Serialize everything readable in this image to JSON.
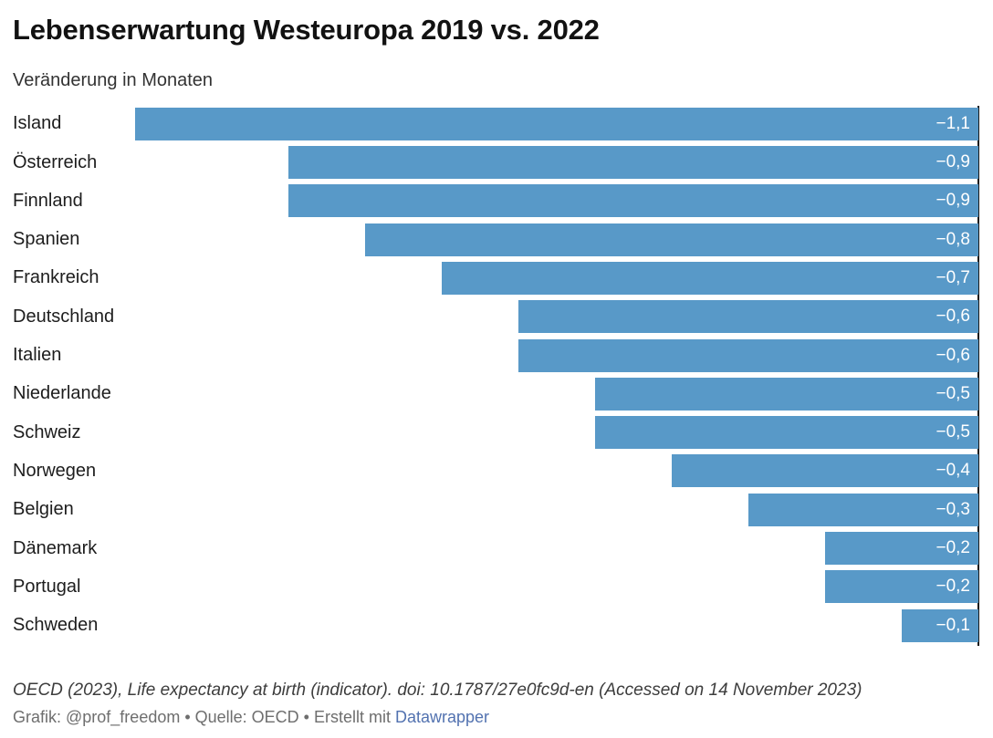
{
  "header": {
    "title": "Lebenserwartung Westeuropa 2019 vs. 2022",
    "subtitle": "Veränderung in Monaten"
  },
  "chart_data": {
    "type": "bar",
    "orientation": "horizontal",
    "title": "Lebenserwartung Westeuropa 2019 vs. 2022",
    "subtitle": "Veränderung in Monaten",
    "unit": "Monate",
    "categories": [
      "Island",
      "Österreich",
      "Finnland",
      "Spanien",
      "Frankreich",
      "Deutschland",
      "Italien",
      "Niederlande",
      "Schweiz",
      "Norwegen",
      "Belgien",
      "Dänemark",
      "Portugal",
      "Schweden"
    ],
    "values": [
      -1.1,
      -0.9,
      -0.9,
      -0.8,
      -0.7,
      -0.6,
      -0.6,
      -0.5,
      -0.5,
      -0.4,
      -0.3,
      -0.2,
      -0.2,
      -0.1
    ],
    "value_labels": [
      "−1,1",
      "−0,9",
      "−0,9",
      "−0,8",
      "−0,7",
      "−0,6",
      "−0,6",
      "−0,5",
      "−0,5",
      "−0,4",
      "−0,3",
      "−0,2",
      "−0,2",
      "−0,1"
    ],
    "xlim": [
      -1.1,
      0
    ],
    "grid": false,
    "legend": "none",
    "zero_axis_position": "right"
  },
  "footer": {
    "citation": "OECD (2023), Life expectancy at birth (indicator). doi: 10.1787/27e0fc9d-en (Accessed on 14 November 2023)",
    "credit_prefix": "Grafik: @prof_freedom • Quelle: OECD • Erstellt mit ",
    "credit_link": "Datawrapper"
  },
  "colors": {
    "bar": "#5899c8",
    "value_label": "#ffffff",
    "zero_axis": "#1a1a1a",
    "link": "#5272b0",
    "title": "#121212",
    "subtitle": "#333333",
    "citation": "#3d3d3d",
    "credits": "#6e6e6e"
  }
}
